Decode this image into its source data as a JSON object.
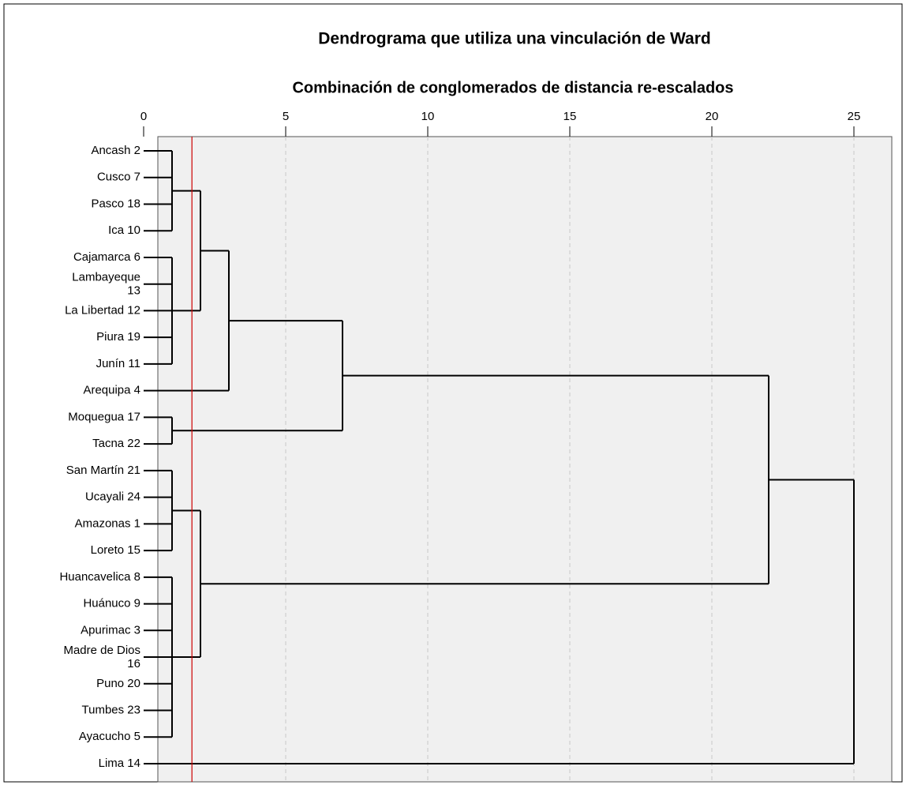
{
  "chart_data": {
    "type": "dendrogram",
    "title": "Dendrograma que utiliza una vinculación de Ward",
    "subtitle": "Combinación de conglomerados de distancia re-escalados",
    "leaves": [
      "Ancash 2",
      "Cusco 7",
      "Pasco 18",
      "Ica 10",
      "Cajamarca 6",
      "Lambayeque\n13",
      "La Libertad 12",
      "Piura 19",
      "Junín 11",
      "Arequipa 4",
      "Moquegua 17",
      "Tacna 22",
      "San Martín 21",
      "Ucayali 24",
      "Amazonas 1",
      "Loreto 15",
      "Huancavelica 8",
      "Huánuco 9",
      "Apurimac 3",
      "Madre de Dios\n16",
      "Puno 20",
      "Tumbes 23",
      "Ayacucho 5",
      "Lima 14"
    ],
    "merges": [
      {
        "children": [
          0,
          1,
          2,
          3
        ],
        "height": 1
      },
      {
        "children": [
          4,
          5,
          6,
          7,
          8
        ],
        "height": 1
      },
      {
        "children": [
          24,
          25
        ],
        "height": 2
      },
      {
        "children": [
          26,
          9
        ],
        "height": 3
      },
      {
        "children": [
          10,
          11
        ],
        "height": 1
      },
      {
        "children": [
          27,
          28
        ],
        "height": 7
      },
      {
        "children": [
          12,
          13,
          14,
          15
        ],
        "height": 1
      },
      {
        "children": [
          16,
          17,
          18,
          19,
          20,
          21,
          22
        ],
        "height": 1
      },
      {
        "children": [
          30,
          31
        ],
        "height": 2
      },
      {
        "children": [
          29,
          32
        ],
        "height": 22
      },
      {
        "children": [
          33,
          23
        ],
        "height": 25
      }
    ],
    "xlim": [
      0,
      25
    ],
    "xticks": [
      0,
      5,
      10,
      15,
      20,
      25
    ],
    "grid": true,
    "cutoff": 1.7,
    "cutoff_color": "#cc0000",
    "line_color": "#000000",
    "background": "#f0f0f0"
  }
}
